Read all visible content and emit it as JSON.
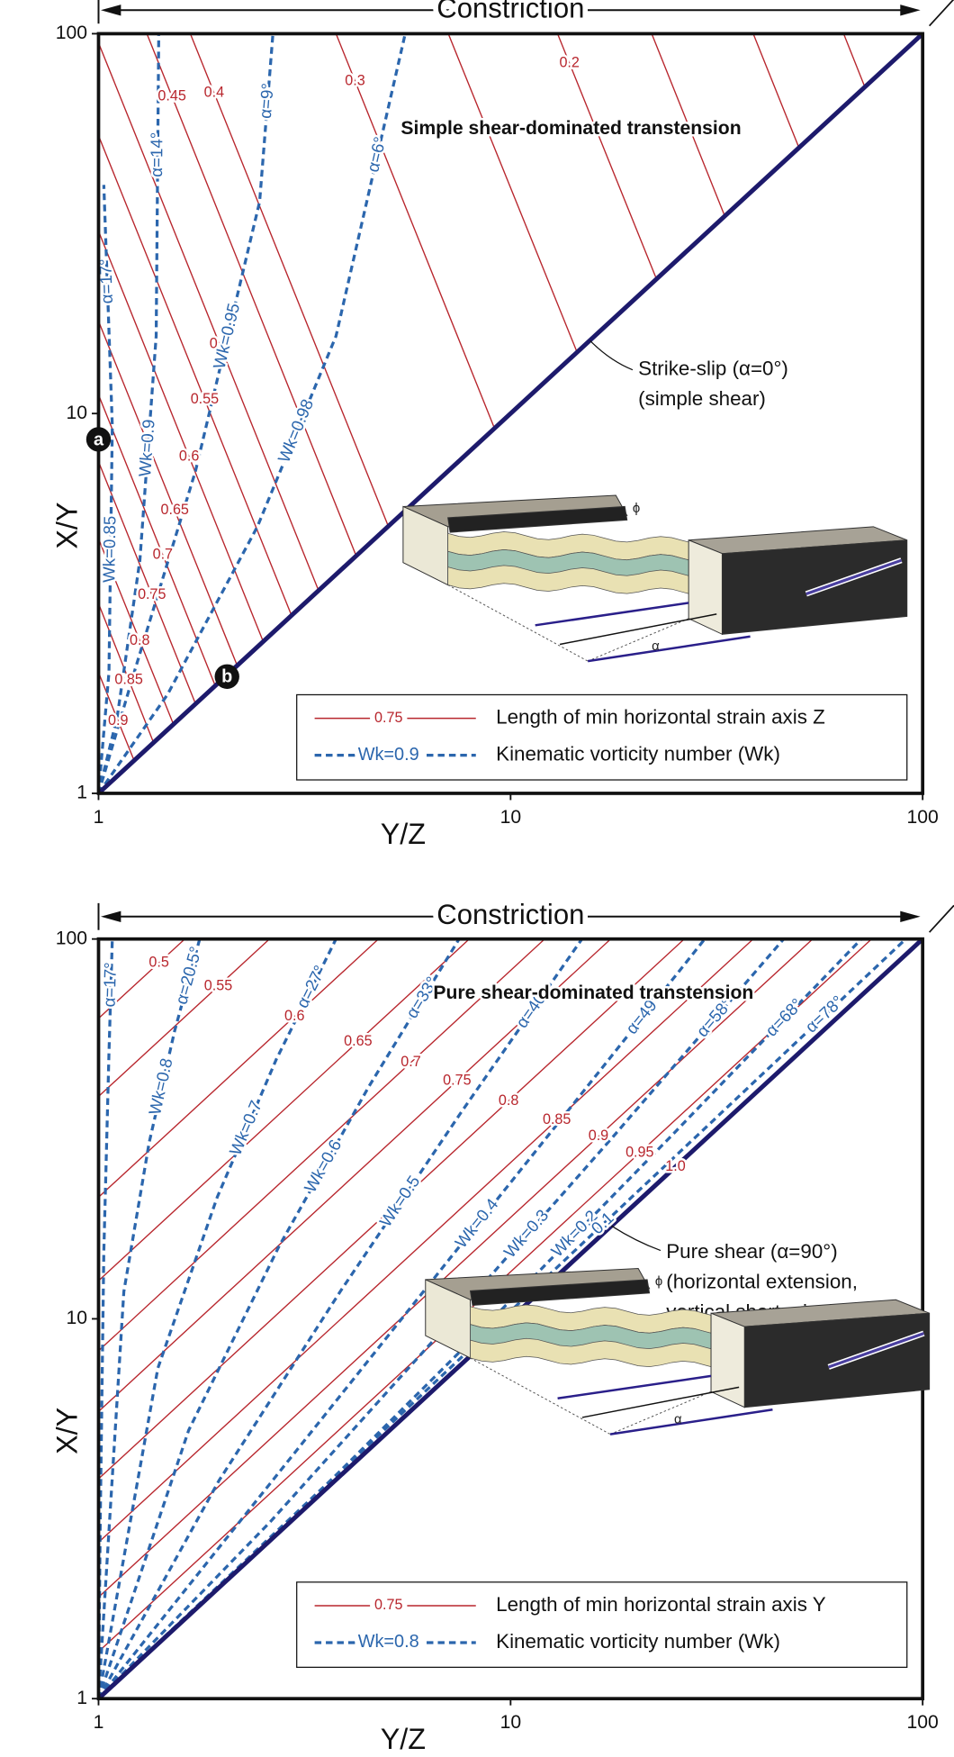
{
  "chart_data": [
    {
      "type": "line",
      "title": "Constriction",
      "subtitle": "Simple shear-dominated transtension",
      "x_label": "Y/Z",
      "y_label": "X/Y",
      "log_x": true,
      "log_y": true,
      "xlim": [
        1,
        100
      ],
      "ylim": [
        1,
        100
      ],
      "xticks": [
        1,
        10,
        100
      ],
      "yticks": [
        1,
        10,
        100
      ],
      "boundary_color": "#1d1a6c",
      "annotation": [
        "Strike-slip (α=0°)",
        "(simple shear)"
      ],
      "points": [
        {
          "label": "a",
          "x": 1,
          "y": 8.55
        },
        {
          "label": "b",
          "x": 2.05,
          "y": 2.03
        }
      ],
      "inset_labels": [
        "ϕ",
        "α"
      ],
      "legend": [
        {
          "sample": "0.75",
          "label": "Length of min horizontal strain axis Z",
          "color": "#b8262d",
          "dashed": false
        },
        {
          "sample": "Wk=0.9",
          "label": "Kinematic vorticity number (Wk)",
          "color": "#2b66ad",
          "dashed": true
        }
      ],
      "series": [
        {
          "name": null,
          "color": "#b8262d",
          "dashed": false,
          "x": [
            64.3,
            72.4
          ],
          "values": [
            100,
            72.4
          ]
        },
        {
          "name": null,
          "color": "#b8262d",
          "dashed": false,
          "x": [
            38.8,
            50.1
          ],
          "values": [
            100,
            50.1
          ]
        },
        {
          "name": null,
          "color": "#b8262d",
          "dashed": false,
          "x": [
            22.0,
            33.1
          ],
          "values": [
            100,
            33.1
          ]
        },
        {
          "name": "0.2",
          "color": "#b8262d",
          "dashed": false,
          "x": [
            13.0,
            22.6
          ],
          "values": [
            100,
            22.6
          ]
        },
        {
          "name": null,
          "color": "#b8262d",
          "dashed": false,
          "x": [
            7.06,
            14.5
          ],
          "values": [
            100,
            14.5
          ]
        },
        {
          "name": "0.3",
          "color": "#b8262d",
          "dashed": false,
          "x": [
            3.77,
            9.14
          ],
          "values": [
            100,
            9.14
          ]
        },
        {
          "name": "0.4",
          "color": "#b8262d",
          "dashed": false,
          "x": [
            1.67,
            5.05
          ],
          "values": [
            100,
            5.05
          ]
        },
        {
          "name": "0.45",
          "color": "#b8262d",
          "dashed": false,
          "x": [
            1.31,
            4.22
          ],
          "values": [
            100,
            4.22
          ]
        },
        {
          "name": "0.5",
          "color": "#b8262d",
          "dashed": false,
          "x": [
            1,
            3.42
          ],
          "values": [
            94.6,
            3.42
          ]
        },
        {
          "name": "0.55",
          "color": "#b8262d",
          "dashed": false,
          "x": [
            1,
            2.94
          ],
          "values": [
            53.9,
            2.94
          ]
        },
        {
          "name": "0.6",
          "color": "#b8262d",
          "dashed": false,
          "x": [
            1,
            2.51
          ],
          "values": [
            30.2,
            2.51
          ]
        },
        {
          "name": "0.65",
          "color": "#b8262d",
          "dashed": false,
          "x": [
            1,
            2.17
          ],
          "values": [
            17.5,
            2.17
          ]
        },
        {
          "name": "0.7",
          "color": "#b8262d",
          "dashed": false,
          "x": [
            1,
            1.92
          ],
          "values": [
            11.2,
            1.92
          ]
        },
        {
          "name": "0.75",
          "color": "#b8262d",
          "dashed": false,
          "x": [
            1,
            1.72
          ],
          "values": [
            7.47,
            1.72
          ]
        },
        {
          "name": "0.8",
          "color": "#b8262d",
          "dashed": false,
          "x": [
            1,
            1.52
          ],
          "values": [
            4.68,
            1.52
          ]
        },
        {
          "name": "0.85",
          "color": "#b8262d",
          "dashed": false,
          "x": [
            1,
            1.36
          ],
          "values": [
            3.16,
            1.36
          ]
        },
        {
          "name": "0.9",
          "color": "#b8262d",
          "dashed": false,
          "x": [
            1,
            1.22
          ],
          "values": [
            2.08,
            1.22
          ]
        },
        {
          "name": "Wk=0.98",
          "alpha": "α=6°",
          "color": "#2b66ad",
          "dashed": true,
          "x": [
            1,
            1.47,
            2.43,
            3.77,
            5.55
          ],
          "values": [
            1,
            1.82,
            5.04,
            16.0,
            100
          ]
        },
        {
          "name": "Wk=0.95",
          "alpha": "α=9°",
          "color": "#2b66ad",
          "dashed": true,
          "x": [
            1,
            1.22,
            1.72,
            2.46,
            2.65
          ],
          "values": [
            1,
            2.08,
            7.07,
            36.1,
            100
          ]
        },
        {
          "name": "Wk=0.9",
          "alpha": "α=14°",
          "color": "#2b66ad",
          "dashed": true,
          "x": [
            1,
            1.11,
            1.26,
            1.38,
            1.4
          ],
          "values": [
            1,
            1.59,
            4.11,
            16.0,
            100
          ]
        },
        {
          "name": "Wk=0.85",
          "alpha": "α=17°",
          "color": "#2b66ad",
          "dashed": true,
          "x": [
            1,
            1.06,
            1.08,
            1.03
          ],
          "values": [
            1,
            2.08,
            9.28,
            40.0
          ]
        }
      ]
    },
    {
      "type": "line",
      "title": "Constriction",
      "subtitle": "Pure shear-dominated transtension",
      "x_label": "Y/Z",
      "y_label": "X/Y",
      "log_x": true,
      "log_y": true,
      "xlim": [
        1,
        100
      ],
      "ylim": [
        1,
        100
      ],
      "xticks": [
        1,
        10,
        100
      ],
      "yticks": [
        1,
        10,
        100
      ],
      "boundary_color": "#1d1a6c",
      "annotation": [
        "Pure shear (α=90°)",
        "(horizontal extension,",
        "vertical shortening)"
      ],
      "inset_labels": [
        "ϕ",
        "α"
      ],
      "legend": [
        {
          "sample": "0.75",
          "label": "Length of min horizontal strain axis Y",
          "color": "#b8262d",
          "dashed": false
        },
        {
          "sample": "Wk=0.8",
          "label": "Kinematic vorticity number (Wk)",
          "color": "#2b66ad",
          "dashed": true
        }
      ],
      "series": [
        {
          "name": "0.5",
          "color": "#b8262d",
          "dashed": false,
          "x": [
            1,
            1.62
          ],
          "values": [
            61.8,
            100
          ]
        },
        {
          "name": "0.55",
          "color": "#b8262d",
          "dashed": false,
          "x": [
            1,
            2.6
          ],
          "values": [
            38.5,
            100
          ]
        },
        {
          "name": "0.6",
          "color": "#b8262d",
          "dashed": false,
          "x": [
            1,
            4.78
          ],
          "values": [
            20.9,
            100
          ]
        },
        {
          "name": "0.65",
          "color": "#b8262d",
          "dashed": false,
          "x": [
            1,
            7.94
          ],
          "values": [
            12.6,
            100
          ]
        },
        {
          "name": "0.7",
          "color": "#b8262d",
          "dashed": false,
          "x": [
            1,
            12.1
          ],
          "values": [
            8.24,
            100
          ]
        },
        {
          "name": "0.75",
          "color": "#b8262d",
          "dashed": false,
          "x": [
            1,
            17.5
          ],
          "values": [
            5.7,
            100
          ]
        },
        {
          "name": "0.8",
          "color": "#b8262d",
          "dashed": false,
          "x": [
            1,
            26.4
          ],
          "values": [
            3.79,
            100
          ]
        },
        {
          "name": "0.85",
          "color": "#b8262d",
          "dashed": false,
          "x": [
            1,
            38.8
          ],
          "values": [
            2.58,
            100
          ]
        },
        {
          "name": "0.9",
          "color": "#b8262d",
          "dashed": false,
          "x": [
            1,
            54.1
          ],
          "values": [
            1.85,
            100
          ]
        },
        {
          "name": "0.95",
          "color": "#b8262d",
          "dashed": false,
          "x": [
            1,
            75.2
          ],
          "values": [
            1.33,
            100
          ]
        },
        {
          "name": "1.0",
          "color": "#b8262d",
          "dashed": false,
          "x": [
            1,
            100
          ],
          "values": [
            1,
            100
          ]
        },
        {
          "name": null,
          "alpha": "α=17°",
          "color": "#2b66ad",
          "dashed": true,
          "x": [
            1,
            1.01,
            1.03,
            1.06,
            1.08
          ],
          "values": [
            1,
            3,
            15,
            50,
            100
          ]
        },
        {
          "name": "Wk=0.8",
          "alpha": "α=20.5°",
          "color": "#2b66ad",
          "dashed": true,
          "x": [
            1,
            1.152,
            1.327,
            1.53,
            1.76
          ],
          "values": [
            1,
            11.8,
            29.1,
            57.3,
            100
          ]
        },
        {
          "name": "Wk=0.7",
          "alpha": "α=27°",
          "color": "#2b66ad",
          "dashed": true,
          "x": [
            1,
            1.393,
            1.941,
            2.7,
            3.77
          ],
          "values": [
            1,
            7.41,
            20.9,
            48.2,
            100
          ]
        },
        {
          "name": "Wk=0.6",
          "alpha": "α=33°",
          "color": "#2b66ad",
          "dashed": true,
          "x": [
            1,
            1.655,
            2.74,
            4.53,
            7.5
          ],
          "values": [
            1,
            5.09,
            15.5,
            40.9,
            100
          ]
        },
        {
          "name": "Wk=0.5",
          "alpha": "α=40°",
          "color": "#2b66ad",
          "dashed": true,
          "x": [
            1,
            1.96,
            3.86,
            7.59,
            14.9
          ],
          "values": [
            1,
            3.75,
            11.8,
            35.0,
            100
          ]
        },
        {
          "name": "Wk=0.4",
          "alpha": "α=49°",
          "color": "#2b66ad",
          "dashed": true,
          "x": [
            1,
            2.33,
            5.44,
            12.7,
            29.6
          ],
          "values": [
            1,
            3.16,
            10,
            31.6,
            100
          ]
        },
        {
          "name": "Wk=0.3",
          "alpha": "α=58°",
          "color": "#2b66ad",
          "dashed": true,
          "x": [
            1,
            2.61,
            6.79,
            17.7,
            46
          ],
          "values": [
            1,
            2.92,
            9.25,
            30.1,
            100
          ]
        },
        {
          "name": "Wk=0.2",
          "alpha": "α=68°",
          "color": "#2b66ad",
          "dashed": true,
          "x": [
            1,
            2.9,
            8.43,
            24.4,
            71
          ],
          "values": [
            1,
            2.92,
            9.25,
            30.1,
            100
          ]
        },
        {
          "name": "0.1",
          "alpha": "α=78°",
          "color": "#2b66ad",
          "dashed": true,
          "x": [
            1,
            3.09,
            9.55,
            29.5,
            91
          ],
          "values": [
            1,
            3.16,
            10,
            31.6,
            100
          ]
        }
      ]
    }
  ]
}
